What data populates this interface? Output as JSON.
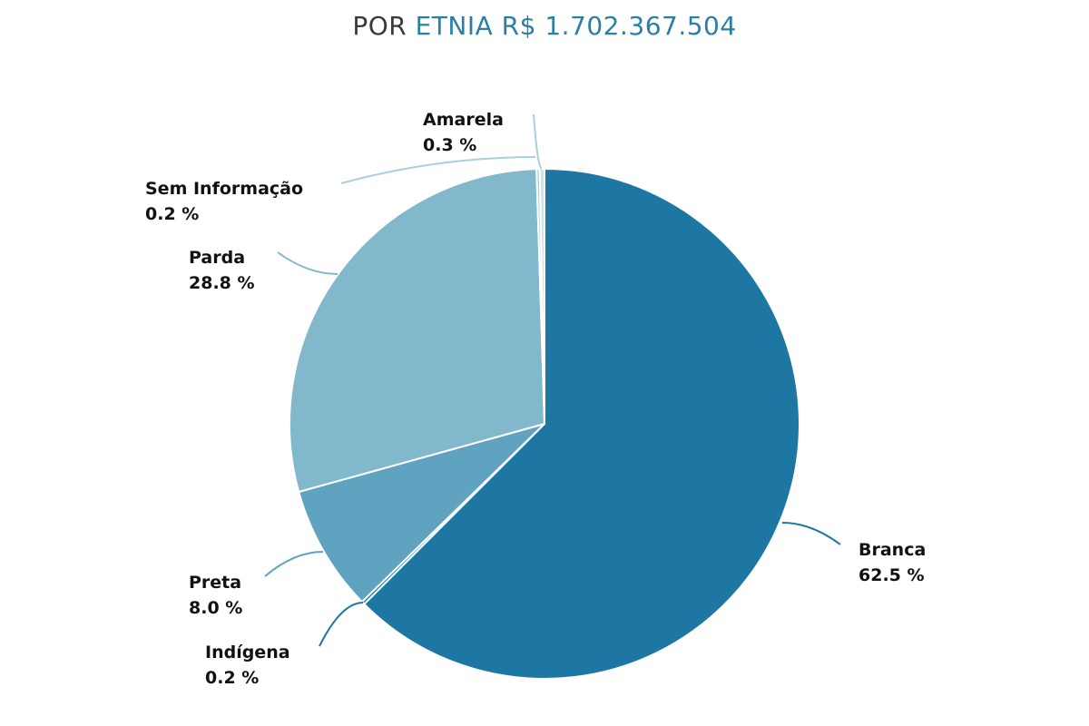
{
  "title": {
    "prefix": "POR",
    "accent": "ETNIA R$ 1.702.367.504"
  },
  "chart_data": {
    "type": "pie",
    "title": "POR ETNIA R$ 1.702.367.504",
    "slices": [
      {
        "name": "Branca",
        "value": 62.5,
        "label": "62.5 %",
        "color": "#1e77a2"
      },
      {
        "name": "Indígena",
        "value": 0.2,
        "label": "0.2 %",
        "color": "#1e77a2"
      },
      {
        "name": "Preta",
        "value": 8.0,
        "label": "8.0 %",
        "color": "#5fa3c0"
      },
      {
        "name": "Parda",
        "value": 28.8,
        "label": "28.8 %",
        "color": "#81b8cb"
      },
      {
        "name": "Sem Informação",
        "value": 0.2,
        "label": "0.2 %",
        "color": "#a8d0dc"
      },
      {
        "name": "Amarela",
        "value": 0.3,
        "label": "0.3 %",
        "color": "#cce5ec"
      }
    ],
    "start": "top",
    "direction": "clockwise"
  }
}
